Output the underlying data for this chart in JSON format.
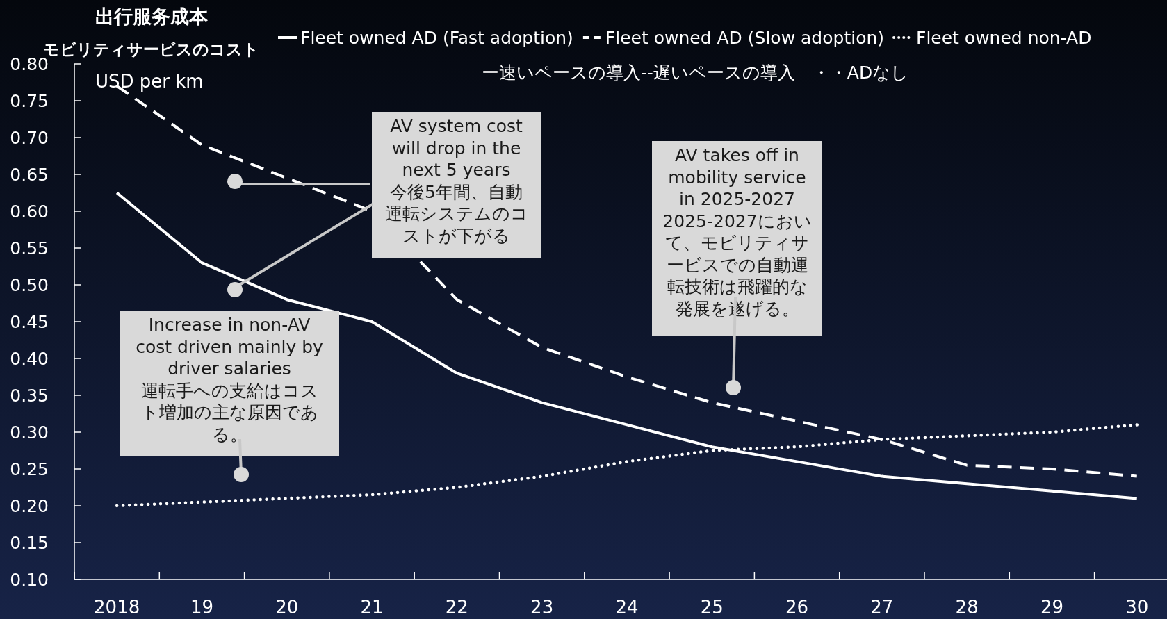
{
  "chart_data": {
    "type": "line",
    "ylabel": "出行服务成本",
    "categories": [
      "2018",
      "19",
      "20",
      "21",
      "22",
      "23",
      "24",
      "25",
      "26",
      "27",
      "28",
      "29",
      "30"
    ],
    "series": [
      {
        "name": "Fleet owned AD (Fast adoption)",
        "color": "#ffffff",
        "line_style": "solid",
        "values": [
          0.625,
          0.53,
          0.48,
          0.45,
          0.38,
          0.34,
          0.31,
          0.28,
          0.26,
          0.24,
          0.23,
          0.22,
          0.21
        ]
      },
      {
        "name": "Fleet owned AD (Slow adoption)",
        "color": "#ffffff",
        "line_style": "dashed",
        "values": [
          0.77,
          0.69,
          0.645,
          0.6,
          0.48,
          0.415,
          0.375,
          0.34,
          0.315,
          0.29,
          0.255,
          0.25,
          0.24
        ]
      },
      {
        "name": "Fleet owned non-AD",
        "color": "#ffffff",
        "line_style": "dotted",
        "values": [
          0.2,
          0.205,
          0.21,
          0.215,
          0.225,
          0.24,
          0.26,
          0.275,
          0.28,
          0.29,
          0.295,
          0.3,
          0.31
        ]
      }
    ],
    "ylim": [
      0.1,
      0.8
    ],
    "yticks": [
      {
        "value": 0.1,
        "label": "0.10"
      },
      {
        "value": 0.15,
        "label": "0.15"
      },
      {
        "value": 0.2,
        "label": "0.20"
      },
      {
        "value": 0.25,
        "label": "0.25"
      },
      {
        "value": 0.3,
        "label": "0.30"
      },
      {
        "value": 0.35,
        "label": "0.35"
      },
      {
        "value": 0.4,
        "label": "0.40"
      },
      {
        "value": 0.45,
        "label": "0.45"
      },
      {
        "value": 0.5,
        "label": "0.50"
      },
      {
        "value": 0.55,
        "label": "0.55"
      },
      {
        "value": 0.6,
        "label": "0.60"
      },
      {
        "value": 0.65,
        "label": "0.65"
      },
      {
        "value": 0.7,
        "label": "0.70"
      },
      {
        "value": 0.75,
        "label": "0.75"
      },
      {
        "value": 0.8,
        "label": "0.80"
      }
    ],
    "legend": "top",
    "annotations": [
      "モビリティサービスのコスト",
      "USD per km",
      "ー速いペースの導入--遅いペースの導入　・・ADなし",
      "AV system cost will drop in the next 5 years\n今後5年間、自動運転システムのコストが下がる",
      "Increase in non-AV cost driven mainly by driver salaries\n運転手への支給はコスト増加の主な原因である。",
      "AV takes off in mobility service in 2025-2027\n2025-2027において、モビリティサービスでの自動運転技術は飛躍的な発展を遂げる。"
    ]
  }
}
